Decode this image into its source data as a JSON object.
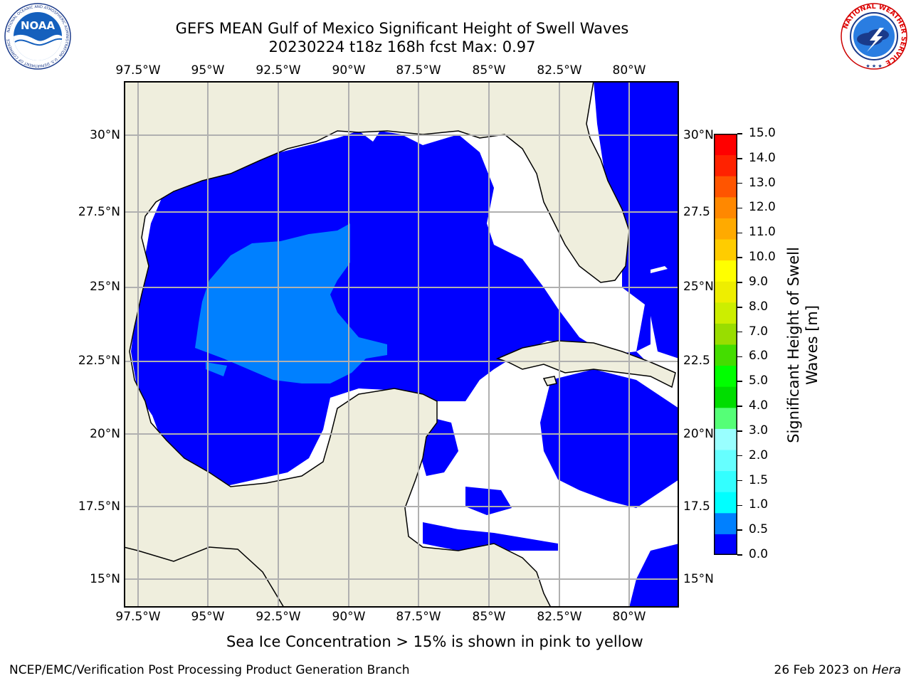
{
  "header": {
    "title_line1": "GEFS MEAN Gulf of Mexico Significant Height of Swell Waves",
    "title_line2": "20230224 t18z 168h fcst   Max: 0.97"
  },
  "logos": {
    "noaa_text": "NOAA",
    "noaa_ring": "NATIONAL OCEANIC AND ATMOSPHERIC ADMINISTRATION · U.S. DEPARTMENT OF COMMERCE",
    "nws_ring": "NATIONAL WEATHER SERVICE"
  },
  "map": {
    "lon_ticks": [
      "97.5°W",
      "95°W",
      "92.5°W",
      "90°W",
      "87.5°W",
      "85°W",
      "82.5°W",
      "80°W"
    ],
    "lat_ticks": [
      "30°N",
      "27.5°N",
      "25°N",
      "22.5°N",
      "20°N",
      "17.5°N",
      "15°N"
    ],
    "lat_ticks_right": [
      "30°N",
      "27.5",
      "25°N",
      "22.5",
      "20°N",
      "17.5",
      "15°N"
    ],
    "colors": {
      "land": "#efeedd",
      "water_low": "#0000ff",
      "water_mid": "#0080ff",
      "no_data": "#ffffff",
      "grid": "#b0b0b0"
    }
  },
  "colorbar": {
    "labels": [
      "15.0",
      "14.0",
      "13.0",
      "12.0",
      "11.0",
      "10.0",
      "9.0",
      "8.0",
      "7.0",
      "6.0",
      "5.0",
      "4.0",
      "3.0",
      "2.0",
      "1.5",
      "1.0",
      "0.5",
      "0.0"
    ],
    "colors_bottom_up": [
      "#0000ff",
      "#0080ff",
      "#00ffff",
      "#33ffff",
      "#66ffff",
      "#99ffff",
      "#55ff77",
      "#00dd00",
      "#00ff00",
      "#44dd00",
      "#99dd00",
      "#ccee00",
      "#eeee00",
      "#ffff00",
      "#ffcc00",
      "#ffaa00",
      "#ff8800",
      "#ff5500",
      "#ff2200",
      "#ff0000"
    ],
    "title_line1": "Significant Height of Swell",
    "title_line2": "Waves [m]"
  },
  "note": "Sea Ice Concentration > 15% is shown in pink to yellow",
  "footer": {
    "left": "NCEP/EMC/Verification Post Processing Product Generation Branch",
    "date": "26 Feb 2023 on",
    "host": "Hera"
  }
}
